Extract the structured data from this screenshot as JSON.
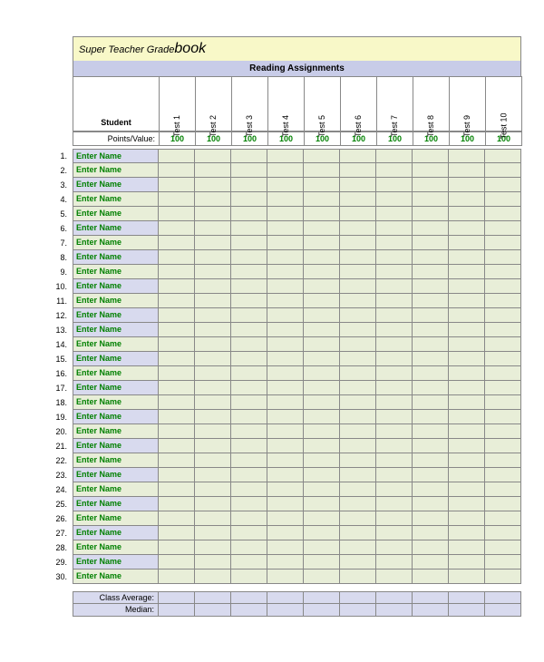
{
  "title": {
    "pre": "Super Teacher Grade",
    "main": "book"
  },
  "section": "Reading Assignments",
  "studentHeader": "Student",
  "pointsLabel": "Points/Value:",
  "tests": [
    {
      "label": "Test 1",
      "points": "100"
    },
    {
      "label": "Test 2",
      "points": "100"
    },
    {
      "label": "Test 3",
      "points": "100"
    },
    {
      "label": "Test 4",
      "points": "100"
    },
    {
      "label": "Test 5",
      "points": "100"
    },
    {
      "label": "Test 6",
      "points": "100"
    },
    {
      "label": "Test 7",
      "points": "100"
    },
    {
      "label": "Test 8",
      "points": "100"
    },
    {
      "label": "Test 9",
      "points": "100"
    },
    {
      "label": "Test 10",
      "points": "100"
    }
  ],
  "rowCount": 30,
  "namePlaceholder": "Enter Name",
  "nameColorPattern": [
    "lav",
    "grn",
    "lav",
    "grn",
    "grn",
    "lav",
    "grn",
    "lav",
    "grn",
    "lav",
    "grn",
    "lav",
    "lav",
    "grn",
    "lav",
    "grn",
    "lav",
    "grn",
    "lav",
    "grn",
    "lav",
    "grn",
    "lav",
    "grn",
    "lav",
    "grn",
    "lav",
    "grn",
    "lav",
    "grn"
  ],
  "summary": {
    "avg": "Class Average:",
    "median": "Median:"
  },
  "colors": {
    "titleBg": "#f8f8c8",
    "sectionBg": "#c8cce8",
    "lavender": "#d8daee",
    "paleGreen": "#e8eed8",
    "border": "#888888",
    "valueGreen": "#008000"
  }
}
